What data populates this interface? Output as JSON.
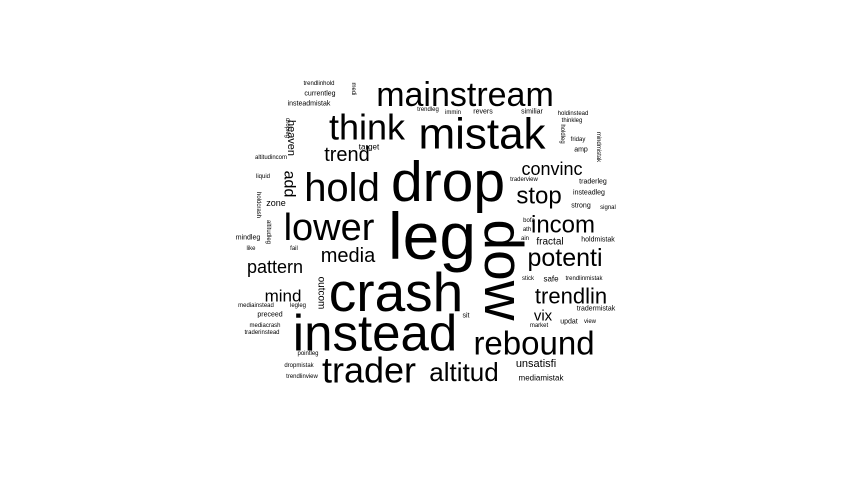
{
  "word_cloud": {
    "text_color": "#000000",
    "background_color": "#ffffff",
    "words": [
      {
        "text": "leg",
        "weight": 1.0
      },
      {
        "text": "drop",
        "weight": 0.86
      },
      {
        "text": "dow",
        "weight": 0.84
      },
      {
        "text": "crash",
        "weight": 0.84
      },
      {
        "text": "instead",
        "weight": 0.78
      },
      {
        "text": "mistak",
        "weight": 0.66
      },
      {
        "text": "hold",
        "weight": 0.6
      },
      {
        "text": "lower",
        "weight": 0.58
      },
      {
        "text": "trader",
        "weight": 0.54
      },
      {
        "text": "think",
        "weight": 0.54
      },
      {
        "text": "mainstream",
        "weight": 0.52
      },
      {
        "text": "rebound",
        "weight": 0.5
      },
      {
        "text": "altitud",
        "weight": 0.4
      },
      {
        "text": "potenti",
        "weight": 0.38
      },
      {
        "text": "incom",
        "weight": 0.36
      },
      {
        "text": "stop",
        "weight": 0.36
      },
      {
        "text": "trendlin",
        "weight": 0.34
      },
      {
        "text": "media",
        "weight": 0.3
      },
      {
        "text": "trend",
        "weight": 0.3
      },
      {
        "text": "pattern",
        "weight": 0.28
      },
      {
        "text": "convinc",
        "weight": 0.28
      },
      {
        "text": "mind",
        "weight": 0.26
      },
      {
        "text": "add",
        "weight": 0.24
      },
      {
        "text": "vix",
        "weight": 0.22
      },
      {
        "text": "heaven",
        "weight": 0.16
      },
      {
        "text": "unsatisfi",
        "weight": 0.16
      },
      {
        "text": "fractal",
        "weight": 0.15
      },
      {
        "text": "outcom",
        "weight": 0.15
      },
      {
        "text": "zone",
        "weight": 0.14
      },
      {
        "text": "safe",
        "weight": 0.12
      },
      {
        "text": "mediamistak",
        "weight": 0.12
      },
      {
        "text": "target",
        "weight": 0.12
      },
      {
        "text": "mindleg",
        "weight": 0.1
      },
      {
        "text": "insteadmistak",
        "weight": 0.1
      },
      {
        "text": "currentleg",
        "weight": 0.1
      },
      {
        "text": "preceed",
        "weight": 0.1
      },
      {
        "text": "holdmistak",
        "weight": 0.1
      },
      {
        "text": "tradermistak",
        "weight": 0.1
      },
      {
        "text": "updat",
        "weight": 0.1
      },
      {
        "text": "similiar",
        "weight": 0.1
      },
      {
        "text": "revers",
        "weight": 0.1
      },
      {
        "text": "strong",
        "weight": 0.1
      },
      {
        "text": "insteadleg",
        "weight": 0.1
      },
      {
        "text": "traderleg",
        "weight": 0.1
      },
      {
        "text": "amp",
        "weight": 0.1
      },
      {
        "text": "sit",
        "weight": 0.1
      },
      {
        "text": "like",
        "weight": 0.09
      },
      {
        "text": "liquid",
        "weight": 0.09
      },
      {
        "text": "legleg",
        "weight": 0.09
      },
      {
        "text": "mediainstead",
        "weight": 0.08
      },
      {
        "text": "mediacrash",
        "weight": 0.08
      },
      {
        "text": "traderinstead",
        "weight": 0.08
      },
      {
        "text": "pointleg",
        "weight": 0.08
      },
      {
        "text": "dropmistak",
        "weight": 0.08
      },
      {
        "text": "trendlinview",
        "weight": 0.08
      },
      {
        "text": "trendlinhold",
        "weight": 0.08
      },
      {
        "text": "altitudincom",
        "weight": 0.08
      },
      {
        "text": "fail",
        "weight": 0.08
      },
      {
        "text": "trendlinmistak",
        "weight": 0.08
      },
      {
        "text": "stick",
        "weight": 0.08
      },
      {
        "text": "market",
        "weight": 0.08
      },
      {
        "text": "view",
        "weight": 0.08
      },
      {
        "text": "bofa",
        "weight": 0.08
      },
      {
        "text": "ath",
        "weight": 0.08
      },
      {
        "text": "ain",
        "weight": 0.08
      },
      {
        "text": "traderview",
        "weight": 0.08
      },
      {
        "text": "signal",
        "weight": 0.08
      },
      {
        "text": "friday",
        "weight": 0.08
      },
      {
        "text": "thinkleg",
        "weight": 0.08
      },
      {
        "text": "holdinstead",
        "weight": 0.08
      },
      {
        "text": "trendleg",
        "weight": 0.08
      },
      {
        "text": "immin",
        "weight": 0.08
      },
      {
        "text": "altitudleg",
        "weight": 0.09
      },
      {
        "text": "holdcrash",
        "weight": 0.07
      },
      {
        "text": "dropleg",
        "weight": 0.07
      },
      {
        "text": "medi",
        "weight": 0.08
      },
      {
        "text": "holdleg",
        "weight": 0.08
      },
      {
        "text": "mindmistak",
        "weight": 0.07
      }
    ]
  }
}
